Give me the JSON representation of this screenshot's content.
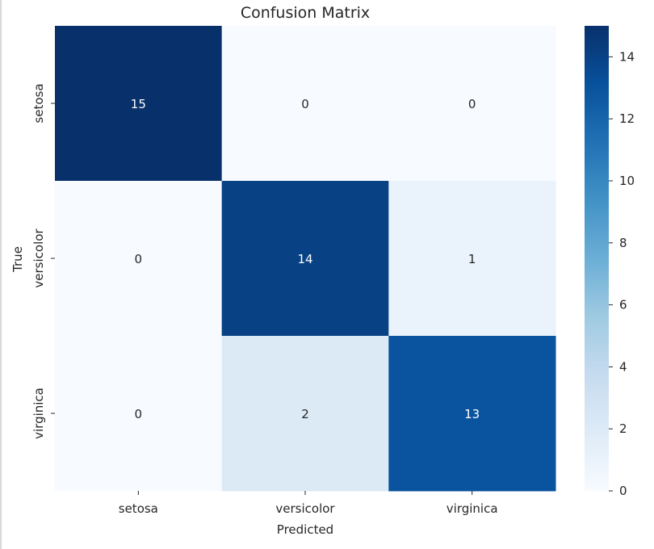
{
  "chart_data": {
    "type": "heatmap",
    "title": "Confusion Matrix",
    "xlabel": "Predicted",
    "ylabel": "True",
    "x_categories": [
      "setosa",
      "versicolor",
      "virginica"
    ],
    "y_categories": [
      "setosa",
      "versicolor",
      "virginica"
    ],
    "values": [
      [
        15,
        0,
        0
      ],
      [
        0,
        14,
        1
      ],
      [
        0,
        2,
        13
      ]
    ],
    "colormap": "Blues",
    "vmin": 0,
    "vmax": 15,
    "colorbar_ticks": [
      0,
      2,
      4,
      6,
      8,
      10,
      12,
      14
    ],
    "grid": false
  }
}
